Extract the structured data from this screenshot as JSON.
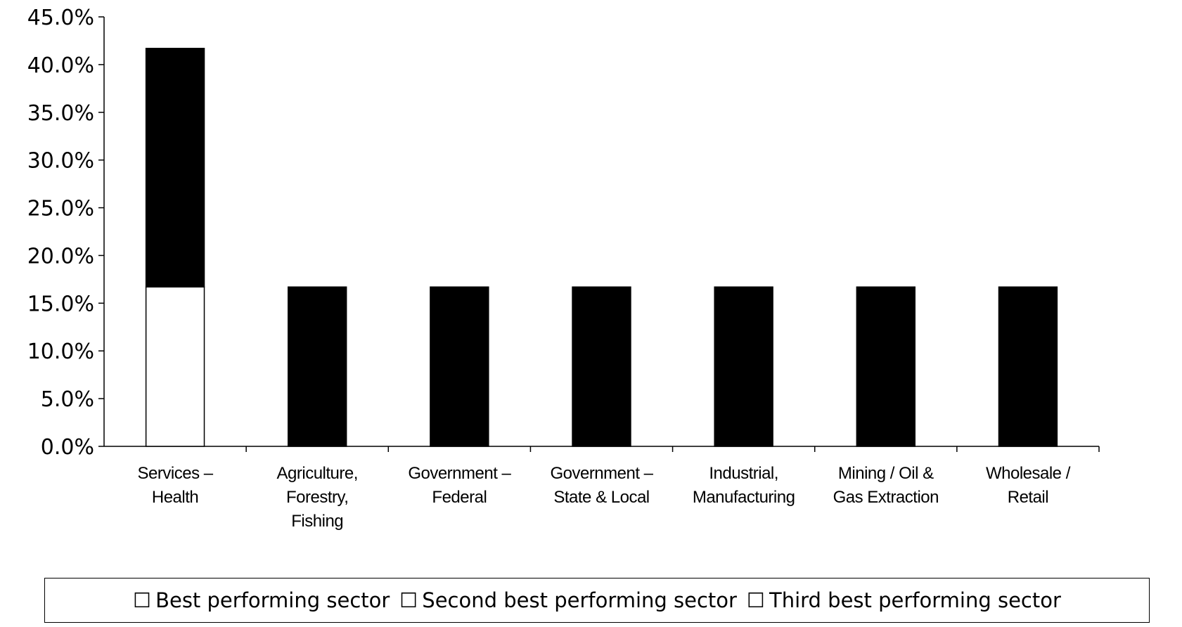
{
  "chart_data": {
    "type": "bar",
    "stacked": true,
    "categories": [
      [
        "Services –",
        "Health"
      ],
      [
        "Agriculture,",
        "Forestry,",
        "Fishing"
      ],
      [
        "Government –",
        "Federal"
      ],
      [
        "Government –",
        "State & Local"
      ],
      [
        "Industrial,",
        "Manufacturing"
      ],
      [
        "Mining / Oil &",
        "Gas Extraction"
      ],
      [
        "Wholesale /",
        "Retail"
      ]
    ],
    "series": [
      {
        "name": "Best performing sector",
        "color": "#ffffff",
        "values": [
          16.7,
          0,
          0,
          0,
          0,
          0,
          0
        ]
      },
      {
        "name": "Second best performing sector",
        "color": "#000000",
        "values": [
          25.0,
          16.7,
          16.7,
          16.7,
          16.7,
          16.7,
          16.7
        ]
      },
      {
        "name": "Third best performing sector",
        "color": "#000000",
        "values": [
          0,
          0,
          0,
          0,
          0,
          0,
          0
        ]
      }
    ],
    "ylim": [
      0,
      45
    ],
    "yticks": [
      "0.0%",
      "5.0%",
      "10.0%",
      "15.0%",
      "20.0%",
      "25.0%",
      "30.0%",
      "35.0%",
      "40.0%",
      "45.0%"
    ],
    "grid": false,
    "legend_position": "bottom"
  },
  "legend": {
    "glyph": "☐",
    "items": [
      "Best performing sector",
      "Second best performing sector",
      "Third best performing sector"
    ]
  }
}
